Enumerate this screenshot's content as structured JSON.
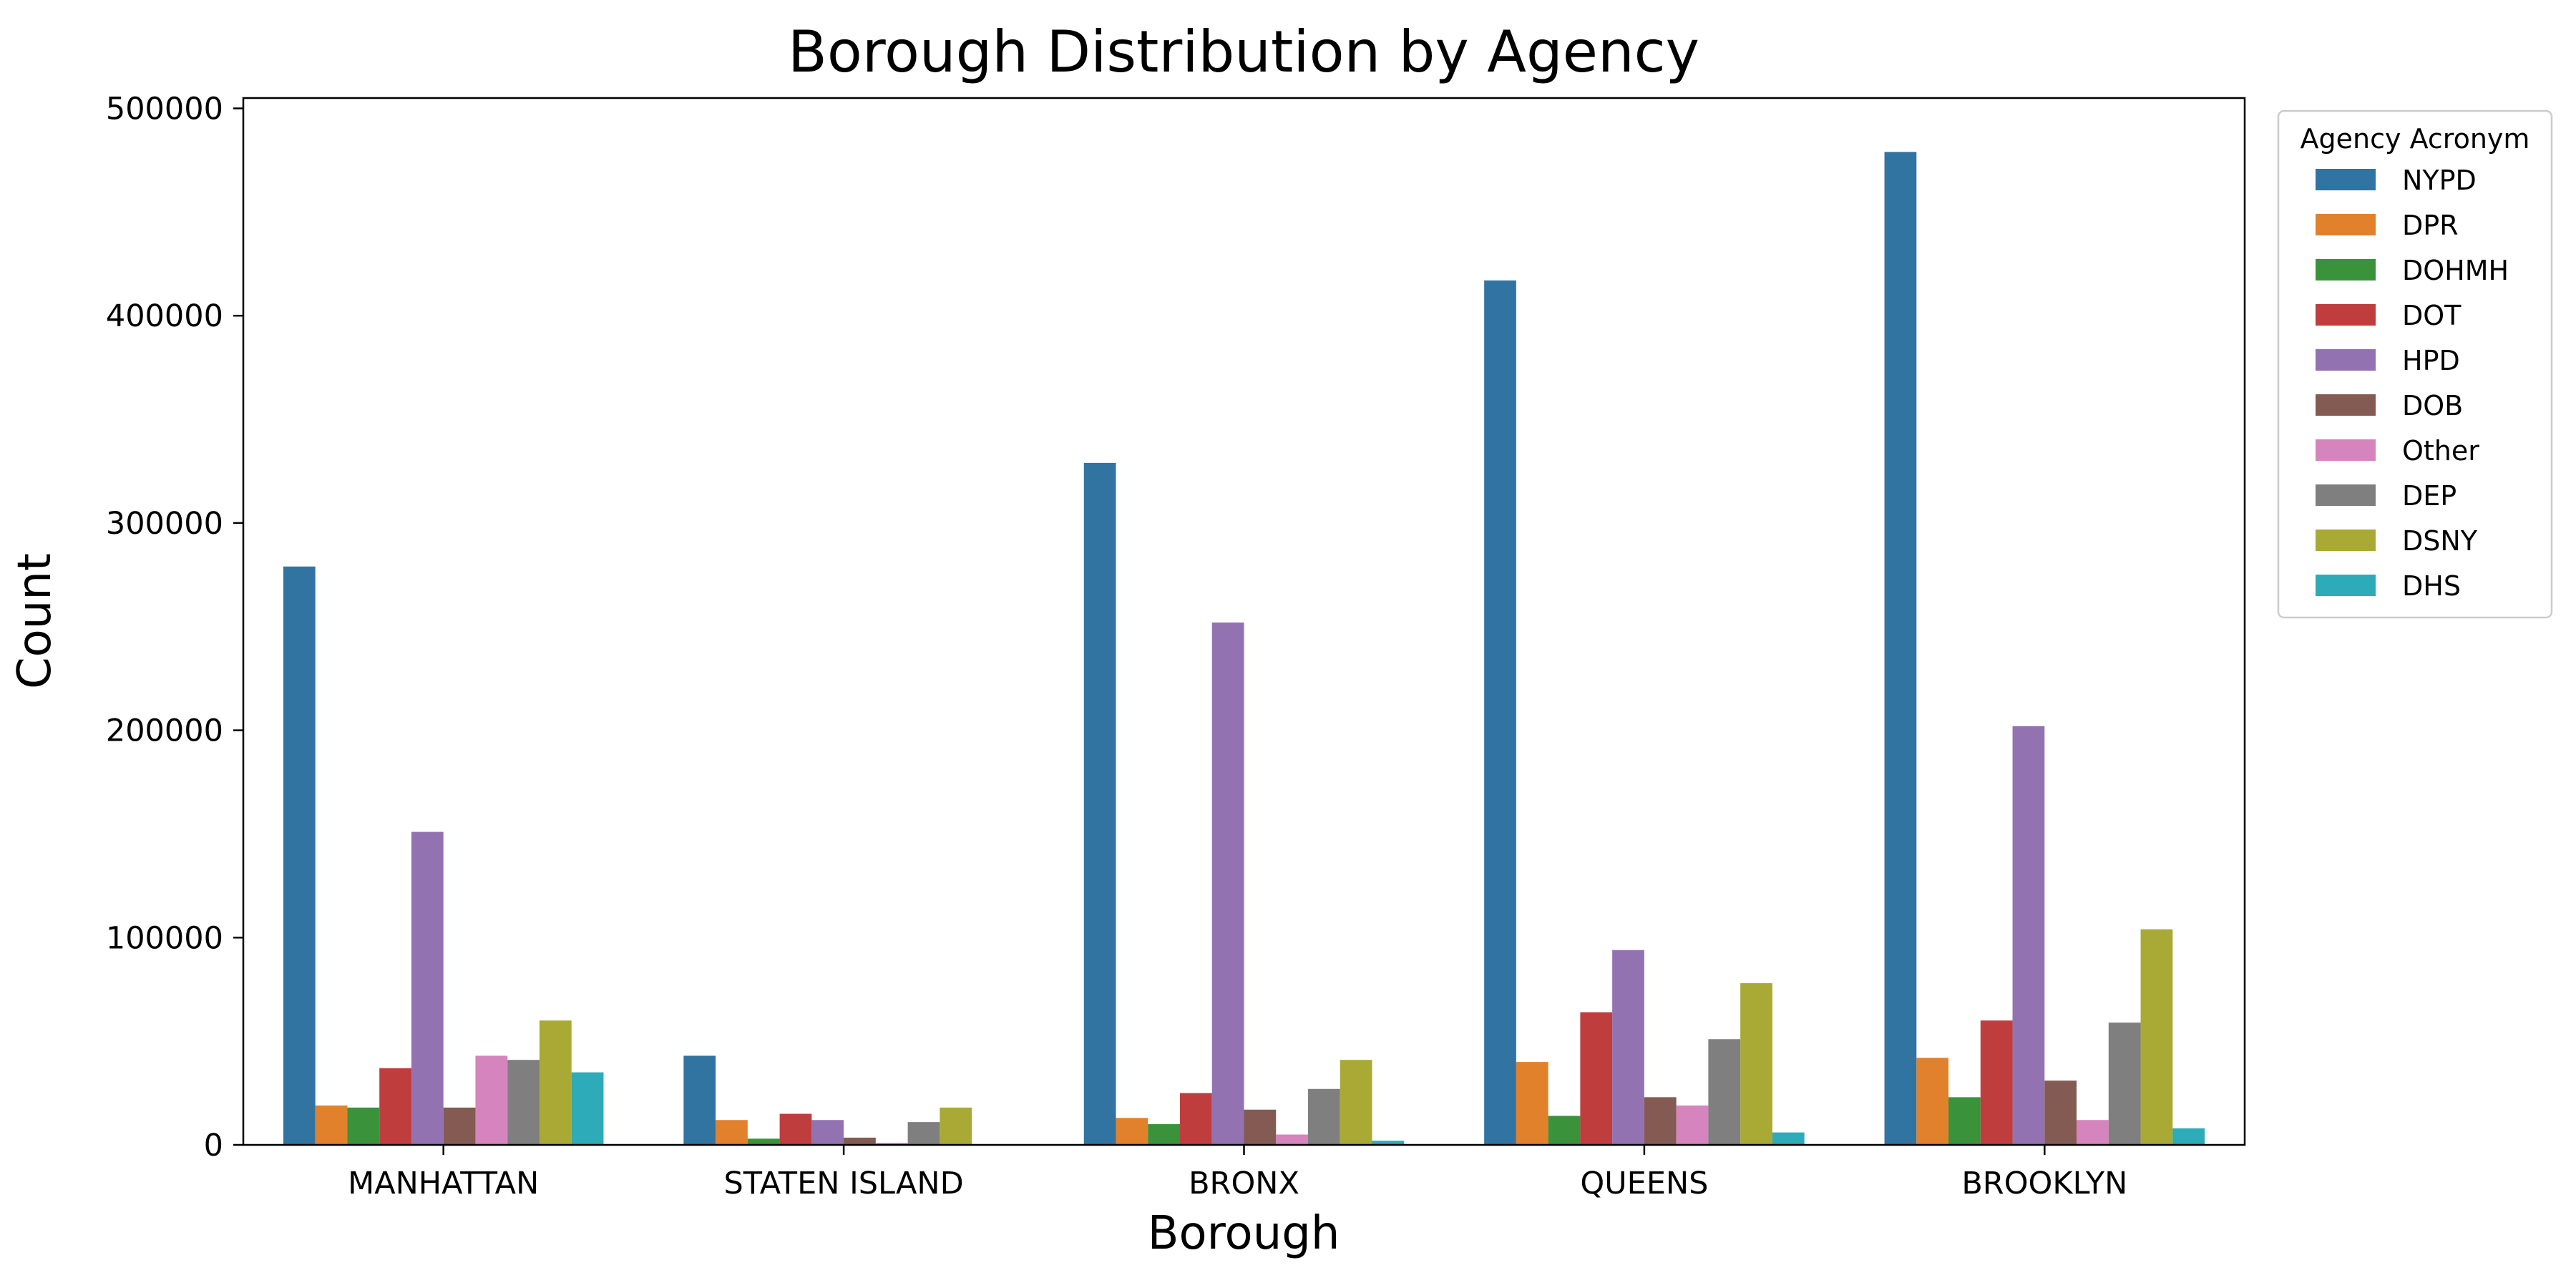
{
  "chart_data": {
    "type": "bar",
    "title": "Borough Distribution by Agency",
    "xlabel": "Borough",
    "ylabel": "Count",
    "ylim": [
      0,
      505000
    ],
    "yticks": [
      0,
      100000,
      200000,
      300000,
      400000,
      500000
    ],
    "grid": false,
    "legend_placement": "outside-right",
    "legend_title": "Agency Acronym",
    "categories": [
      "MANHATTAN",
      "STATEN ISLAND",
      "BRONX",
      "QUEENS",
      "BROOKLYN"
    ],
    "series": [
      {
        "name": "NYPD",
        "color": "#3274a1",
        "values": [
          279000,
          43000,
          329000,
          417000,
          479000
        ]
      },
      {
        "name": "DPR",
        "color": "#e1812c",
        "values": [
          19000,
          12000,
          13000,
          40000,
          42000
        ]
      },
      {
        "name": "DOHMH",
        "color": "#3a923a",
        "values": [
          18000,
          3000,
          10000,
          14000,
          23000
        ]
      },
      {
        "name": "DOT",
        "color": "#c03d3e",
        "values": [
          37000,
          15000,
          25000,
          64000,
          60000
        ]
      },
      {
        "name": "HPD",
        "color": "#9372b2",
        "values": [
          151000,
          12000,
          252000,
          94000,
          202000
        ]
      },
      {
        "name": "DOB",
        "color": "#845b53",
        "values": [
          18000,
          3500,
          17000,
          23000,
          31000
        ]
      },
      {
        "name": "Other",
        "color": "#d684bd",
        "values": [
          43000,
          1000,
          5000,
          19000,
          12000
        ]
      },
      {
        "name": "DEP",
        "color": "#7f7f7f",
        "values": [
          41000,
          11000,
          27000,
          51000,
          59000
        ]
      },
      {
        "name": "DSNY",
        "color": "#a9aa35",
        "values": [
          60000,
          18000,
          41000,
          78000,
          104000
        ]
      },
      {
        "name": "DHS",
        "color": "#2eabb8",
        "values": [
          35000,
          0,
          2000,
          6000,
          8000
        ]
      }
    ]
  }
}
